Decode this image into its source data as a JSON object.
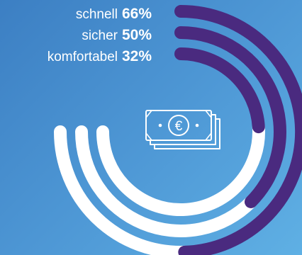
{
  "chart_data": {
    "type": "radial-bar",
    "series": [
      {
        "label": "schnell",
        "value": 66,
        "display": "66%"
      },
      {
        "label": "sicher",
        "value": 50,
        "display": "50%"
      },
      {
        "label": "komfortabel",
        "value": 32,
        "display": "32%"
      }
    ],
    "unit": "%",
    "max": 100
  },
  "colors": {
    "filled": "#4a2a7f",
    "remaining": "#ffffff",
    "icon": "#ffffff"
  },
  "icon": "euro-banknote-icon"
}
